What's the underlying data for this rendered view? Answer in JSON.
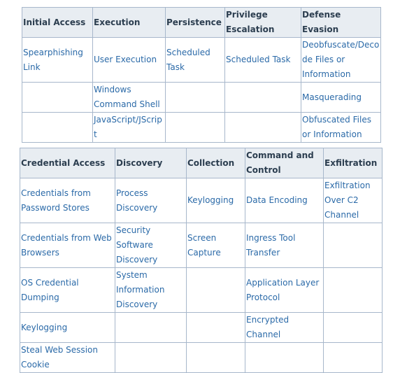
{
  "table1": {
    "headers": [
      "Initial Access",
      "Execution",
      "Persistence",
      "Privilege Escalation",
      "Defense Evasion"
    ],
    "rows": [
      [
        "Spearphishing Link",
        "User Execution",
        "Scheduled Task",
        "Scheduled Task",
        "Deobfuscate/Decode Files or Information"
      ],
      [
        "",
        "Windows Command Shell",
        "",
        "",
        "Masquerading"
      ],
      [
        "",
        "JavaScript/JScript",
        "",
        "",
        "Obfuscated Files or Information"
      ]
    ]
  },
  "table2": {
    "headers": [
      "Credential Access",
      "Discovery",
      "Collection",
      "Command and Control",
      "Exfiltration"
    ],
    "rows": [
      [
        "Credentials from Password Stores",
        "Process Discovery",
        "Keylogging",
        "Data Encoding",
        "Exfiltration Over C2 Channel"
      ],
      [
        "Credentials from Web Browsers",
        "Security Software Discovery",
        "Screen Capture",
        "Ingress Tool Transfer",
        ""
      ],
      [
        "OS Credential Dumping",
        "System Information Discovery",
        "",
        "Application Layer Protocol",
        ""
      ],
      [
        "Keylogging",
        "",
        "",
        "Encrypted Channel",
        ""
      ],
      [
        "Steal Web Session Cookie",
        "",
        "",
        "",
        ""
      ]
    ]
  }
}
